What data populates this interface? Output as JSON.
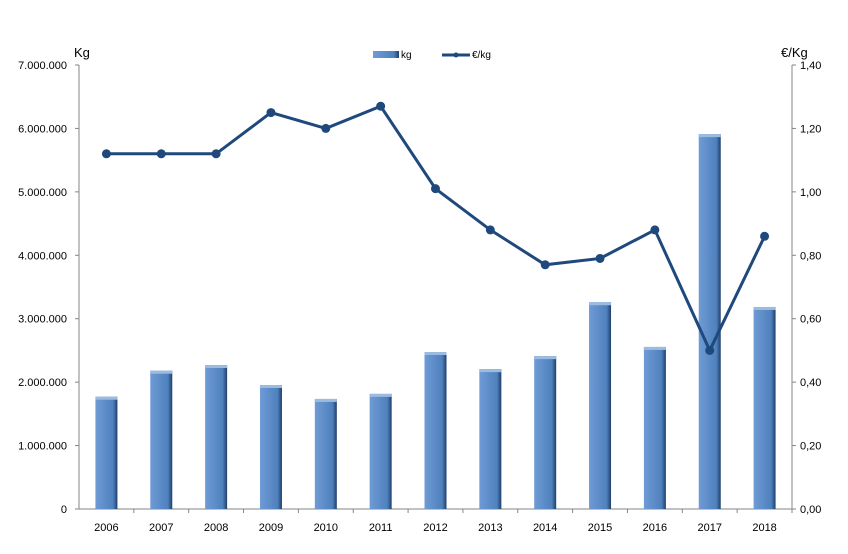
{
  "chart_data": {
    "type": "bar",
    "title": "",
    "categories": [
      "2006",
      "2007",
      "2008",
      "2009",
      "2010",
      "2011",
      "2012",
      "2013",
      "2014",
      "2015",
      "2016",
      "2017",
      "2018"
    ],
    "series": [
      {
        "name": "kg",
        "type": "bar",
        "axis": "left",
        "color": "#4f81bd",
        "values": [
          1770000,
          2180000,
          2270000,
          1955000,
          1735000,
          1815000,
          2475000,
          2205000,
          2410000,
          3260000,
          2555000,
          5910000,
          3185000
        ]
      },
      {
        "name": "€/kg",
        "type": "line",
        "axis": "right",
        "color": "#1f497d",
        "values": [
          1.12,
          1.12,
          1.12,
          1.25,
          1.2,
          1.27,
          1.01,
          0.88,
          0.77,
          0.79,
          0.88,
          0.5,
          0.86
        ]
      }
    ],
    "ylabel": "Kg",
    "y2label": "€/Kg",
    "ylim": [
      0,
      7000000
    ],
    "y2lim": [
      0,
      1.4
    ],
    "yticks": [
      "0",
      "1.000.000",
      "2.000.000",
      "3.000.000",
      "4.000.000",
      "5.000.000",
      "6.000.000",
      "7.000.000"
    ],
    "y2ticks": [
      "0,00",
      "0,20",
      "0,40",
      "0,60",
      "0,80",
      "1,00",
      "1,20",
      "1,40"
    ],
    "legend": "top-center",
    "grid": false
  }
}
